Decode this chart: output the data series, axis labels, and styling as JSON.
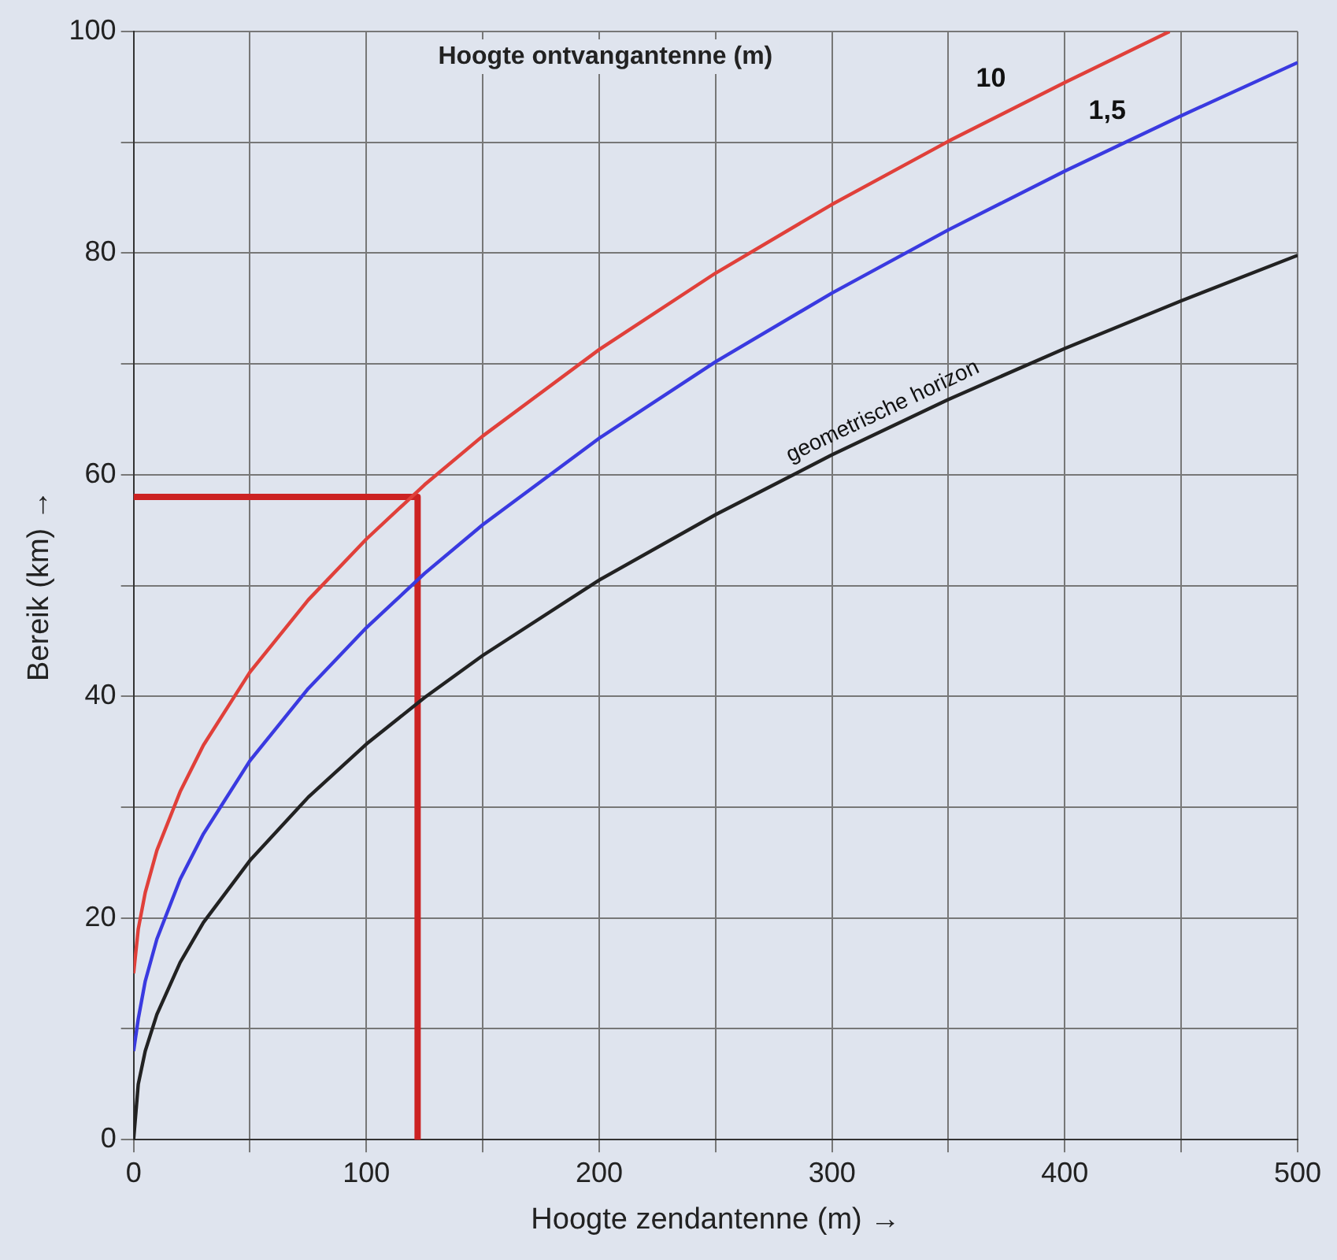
{
  "chart_data": {
    "type": "line",
    "legend_title": "Hoogte ontvangantenne (m)",
    "xlabel": "Hoogte zendantenne (m) →",
    "ylabel": "Bereik (km) →",
    "xlim": [
      0,
      500
    ],
    "ylim": [
      0,
      100
    ],
    "xticks": [
      0,
      {
        "value": 50,
        "label": null
      },
      100,
      {
        "value": 150,
        "label": null
      },
      200,
      {
        "value": 250,
        "label": null
      },
      300,
      {
        "value": 350,
        "label": null
      },
      400,
      {
        "value": 450,
        "label": null
      },
      500
    ],
    "yticks": [
      0,
      {
        "value": 10,
        "label": null
      },
      20,
      {
        "value": 30,
        "label": null
      },
      40,
      {
        "value": 50,
        "label": null
      },
      60,
      {
        "value": 70,
        "label": null
      },
      80,
      {
        "value": 90,
        "label": null
      },
      100
    ],
    "grid": true,
    "marker": "none",
    "line_style": "solid",
    "series": [
      {
        "name": "10",
        "color": "#e0403a",
        "x": [
          0,
          2,
          5,
          10,
          20,
          30,
          50,
          75,
          100,
          125,
          150,
          200,
          250,
          300,
          350,
          400,
          445
        ],
        "values": [
          15,
          19,
          22.3,
          26.1,
          31.4,
          35.6,
          42.2,
          48.7,
          54.2,
          59.1,
          63.5,
          71.3,
          78.2,
          84.4,
          90.1,
          95.4,
          100
        ]
      },
      {
        "name": "1,5",
        "color": "#3a3ae0",
        "x": [
          0,
          2,
          5,
          10,
          20,
          30,
          50,
          75,
          100,
          125,
          150,
          200,
          250,
          300,
          350,
          400,
          450,
          500
        ],
        "values": [
          8,
          10.9,
          14.3,
          18.1,
          23.5,
          27.6,
          34.2,
          40.7,
          46.2,
          51.1,
          55.5,
          63.3,
          70.2,
          76.4,
          82.1,
          87.4,
          92.4,
          97.2
        ]
      },
      {
        "name": "geometrische horizon",
        "color": "#222222",
        "x": [
          0,
          2,
          5,
          10,
          20,
          30,
          50,
          75,
          100,
          125,
          150,
          200,
          250,
          300,
          350,
          400,
          450,
          500
        ],
        "values": [
          0,
          5,
          8,
          11.3,
          16,
          19.6,
          25.2,
          30.9,
          35.7,
          39.9,
          43.7,
          50.5,
          56.4,
          61.8,
          66.8,
          71.4,
          75.7,
          79.8
        ]
      },
      {
        "color": "#cc2222",
        "x": [
          0,
          122,
          122
        ],
        "values": [
          58,
          58,
          0
        ]
      }
    ]
  }
}
